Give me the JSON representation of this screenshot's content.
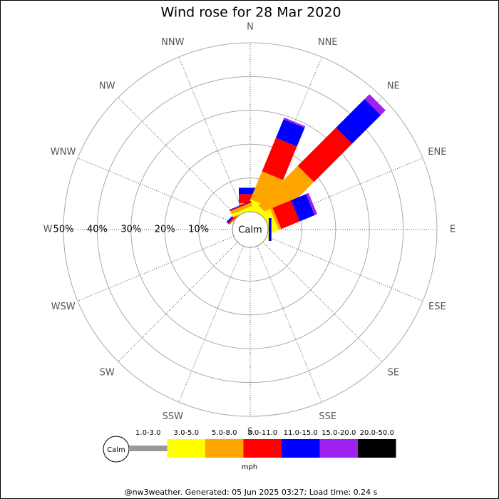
{
  "chart_data": {
    "type": "windrose",
    "title": "Wind rose for 28 Mar 2020",
    "categories": [
      "N",
      "NNE",
      "NE",
      "ENE",
      "E",
      "ESE",
      "SE",
      "SSE",
      "S",
      "SSW",
      "SW",
      "WSW",
      "W",
      "WNW",
      "NW",
      "NNW"
    ],
    "series": [
      {
        "name": "1.0-3.0",
        "color": "#999999",
        "values": [
          0,
          0,
          0,
          0,
          0,
          0,
          0,
          0,
          0,
          0,
          0,
          0,
          0,
          0,
          0,
          0
        ]
      },
      {
        "name": "3.0-5.0",
        "color": "#ffff00",
        "values": [
          0.5,
          3.1,
          1.5,
          2.5,
          0.2,
          0,
          0,
          0,
          0,
          0,
          0,
          0,
          0,
          0,
          0,
          1.0
        ]
      },
      {
        "name": "5.0-8.0",
        "color": "#ffa500",
        "values": [
          2.0,
          8.9,
          16.5,
          0.8,
          0,
          0,
          0,
          0,
          0,
          0,
          0,
          0,
          0,
          0,
          0.3,
          1.0
        ]
      },
      {
        "name": "8.0-11.0",
        "color": "#ff0000",
        "values": [
          2.7,
          10.7,
          16,
          5.9,
          0,
          0,
          0,
          0,
          0,
          0,
          0,
          0,
          0,
          0,
          0.5,
          0.3
        ]
      },
      {
        "name": "11.0-15.0",
        "color": "#0000ff",
        "values": [
          1.9,
          6.0,
          12,
          4.8,
          0.8,
          0,
          0,
          0,
          0,
          0,
          0,
          0,
          0,
          0,
          0.5,
          0.2
        ]
      },
      {
        "name": "15.0-20.0",
        "color": "#a020f0",
        "values": [
          0,
          0.5,
          2,
          0.8,
          0,
          0,
          0,
          0,
          0,
          0,
          0,
          0,
          0,
          0,
          0,
          0
        ]
      },
      {
        "name": "20.0-50.0",
        "color": "#000000",
        "values": [
          0,
          0,
          0,
          0,
          0,
          0,
          0,
          0,
          0,
          0,
          0,
          0,
          0,
          0,
          0,
          0
        ]
      }
    ],
    "rlim": [
      0,
      50
    ],
    "rticks": [
      {
        "value": 10,
        "label": "10%"
      },
      {
        "value": 20,
        "label": "20%"
      },
      {
        "value": 30,
        "label": "30%"
      },
      {
        "value": 40,
        "label": "40%"
      },
      {
        "value": 50,
        "label": "50%"
      }
    ],
    "calm_label": "Calm",
    "unit": "mph",
    "footer": "@nw3weather. Generated: 05 Jun 2025 03:27; Load time: 0.24 s"
  }
}
